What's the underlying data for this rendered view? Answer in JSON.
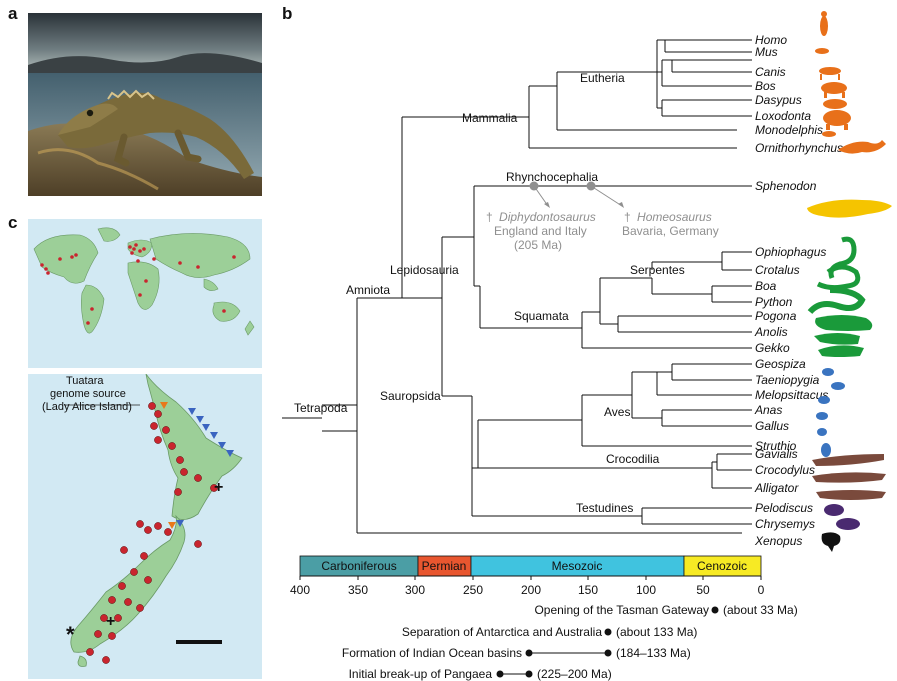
{
  "panels": {
    "a": "a",
    "b": "b",
    "c": "c"
  },
  "map_labels": {
    "source_line1": "Tuatara",
    "source_line2": "genome source",
    "source_line3": "(Lady Alice Island)",
    "asterisk": "*",
    "cross": "+"
  },
  "taxa": [
    "Homo",
    "Mus",
    "Canis",
    "Bos",
    "Dasypus",
    "Loxodonta",
    "Monodelphis",
    "Ornithorhynchus",
    "Sphenodon",
    "Ophiophagus",
    "Crotalus",
    "Boa",
    "Python",
    "Pogona",
    "Anolis",
    "Gekko",
    "Geospiza",
    "Taeniopygia",
    "Melopsittacus",
    "Anas",
    "Gallus",
    "Struthio",
    "Gavialis",
    "Crocodylus",
    "Alligator",
    "Pelodiscus",
    "Chrysemys",
    "Xenopus"
  ],
  "clades": {
    "eutheria": "Eutheria",
    "mammalia": "Mammalia",
    "rhynchocephalia": "Rhynchocephalia",
    "lepidosauria": "Lepidosauria",
    "amniota": "Amniota",
    "serpentes": "Serpentes",
    "squamata": "Squamata",
    "tetrapoda": "Tetrapoda",
    "sauropsida": "Sauropsida",
    "aves": "Aves",
    "crocodilia": "Crocodilia",
    "testudines": "Testudines"
  },
  "fossils": {
    "diphy_dagger": "†",
    "diphy_name": "Diphydontosaurus",
    "diphy_place": "England and Italy",
    "diphy_age": "(205 Ma)",
    "homeo_dagger": "†",
    "homeo_name": "Homeosaurus",
    "homeo_place": "Bavaria, Germany"
  },
  "timescale": {
    "periods": [
      "Carboniferous",
      "Permian",
      "Mesozoic",
      "Cenozoic"
    ],
    "ticks": [
      "400",
      "350",
      "300",
      "250",
      "200",
      "150",
      "100",
      "50",
      "0"
    ]
  },
  "events": [
    {
      "label": "Opening of the Tasman Gateway",
      "range": "(about 33 Ma)"
    },
    {
      "label": "Separation of Antarctica and Australia",
      "range": "(about 133 Ma)"
    },
    {
      "label": "Formation of Indian Ocean basins",
      "range": "(184–133 Ma)"
    },
    {
      "label": "Initial break-up of Pangaea",
      "range": "(225–200 Ma)"
    }
  ],
  "colors": {
    "mammal": "#e8701a",
    "tuatara": "#f5c400",
    "squamate": "#1a9a3a",
    "bird": "#3a74c0",
    "croc": "#7a4a3c",
    "turtle": "#4a2a70",
    "frog": "#111111",
    "carboniferous": "#4b9ea5",
    "permian": "#e8562f",
    "mesozoic": "#40c3df",
    "cenozoic": "#f7ea24",
    "map_land": "#9ccf98",
    "map_sea": "#d2e9f3",
    "site_dot": "#c9252e",
    "fossil_grey": "#8f8f8f"
  }
}
